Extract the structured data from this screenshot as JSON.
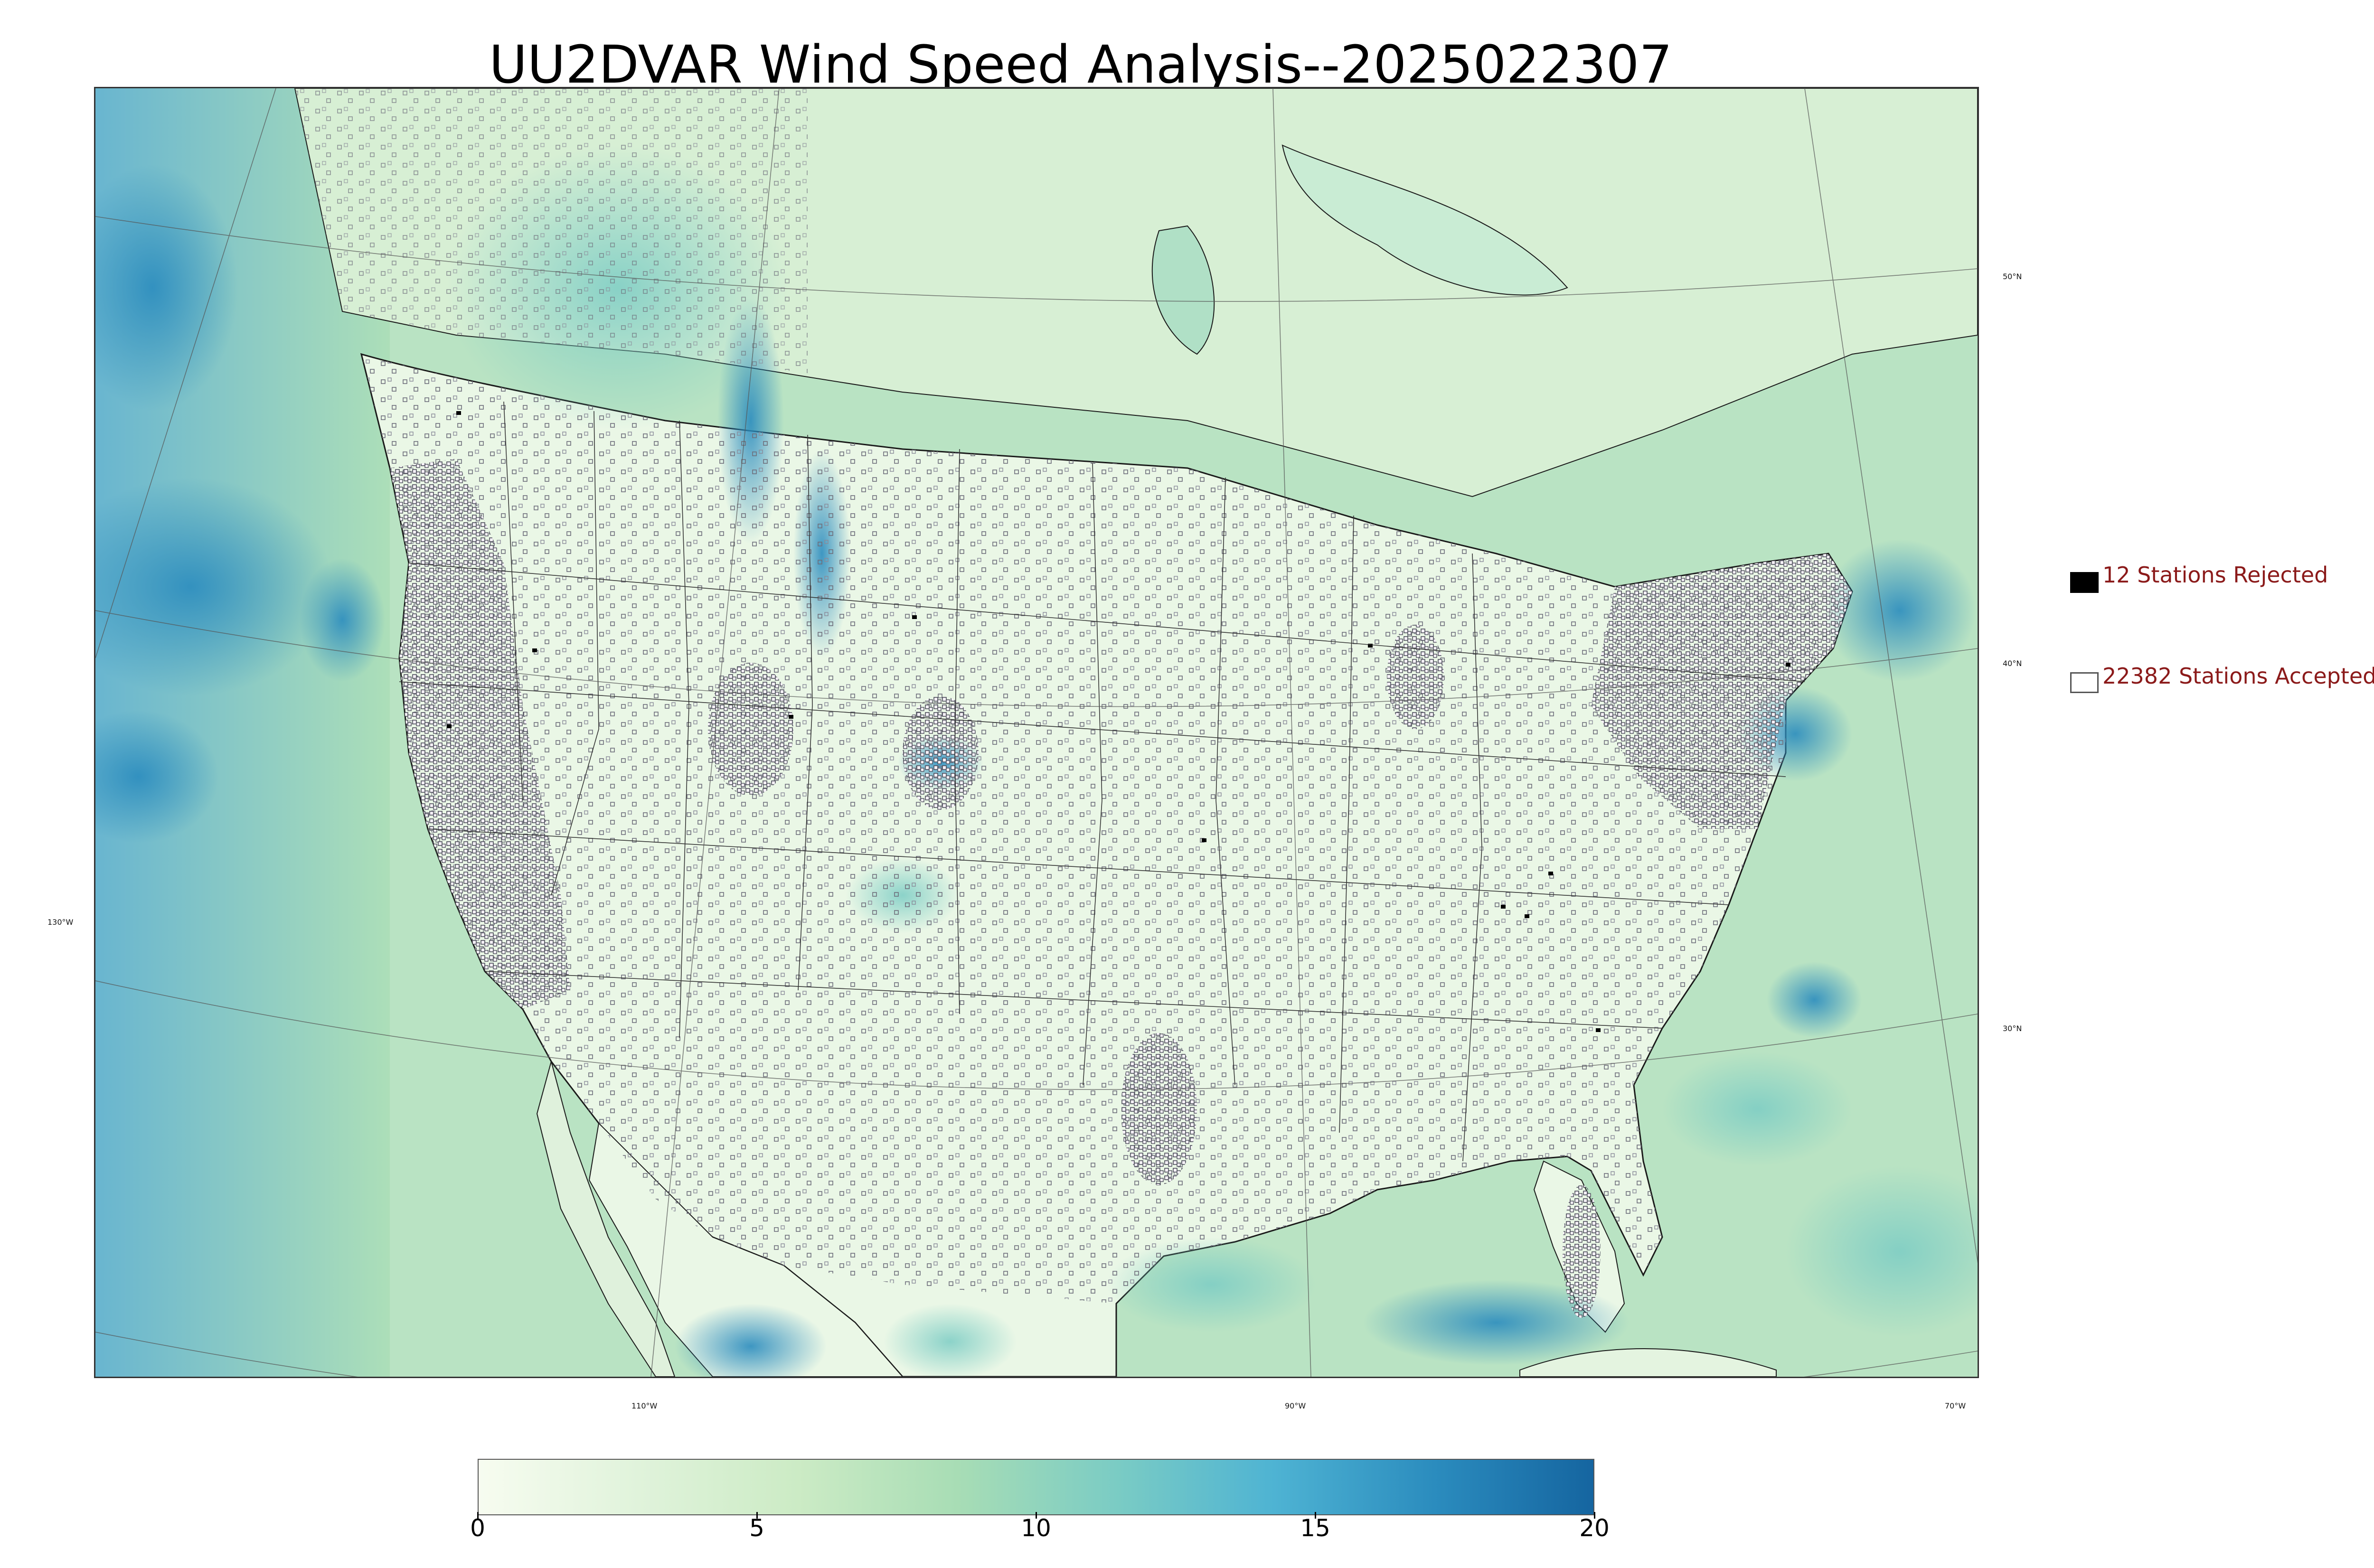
{
  "title": "UU2DVAR Wind Speed Analysis--2025022307",
  "map": {
    "parameter": "wind speed",
    "lat_labels": [
      "50°N",
      "40°N",
      "30°N"
    ],
    "lon_labels": [
      "130°W",
      "110°W",
      "90°W",
      "70°W"
    ]
  },
  "legend": {
    "rejected": {
      "label": "12 Stations Rejected",
      "count": 12,
      "marker": "filled-black-square"
    },
    "accepted": {
      "label": "22382 Stations Accepted",
      "count": 22382,
      "marker": "open-square"
    }
  },
  "colorbar": {
    "min": 0,
    "max": 20,
    "tick_labels": [
      "0",
      "5",
      "10",
      "15",
      "20"
    ],
    "colors": [
      "#f7fcf0",
      "#e0f3db",
      "#ccebc5",
      "#a8ddb5",
      "#7bccc4",
      "#4eb3d3",
      "#2b8cbe",
      "#1565a0"
    ]
  },
  "colors": {
    "land": "#e9f6e3",
    "ocean": "#a6dcc0",
    "strong_wind": "#2b8cbe",
    "legend_text": "#8b1a1a"
  }
}
